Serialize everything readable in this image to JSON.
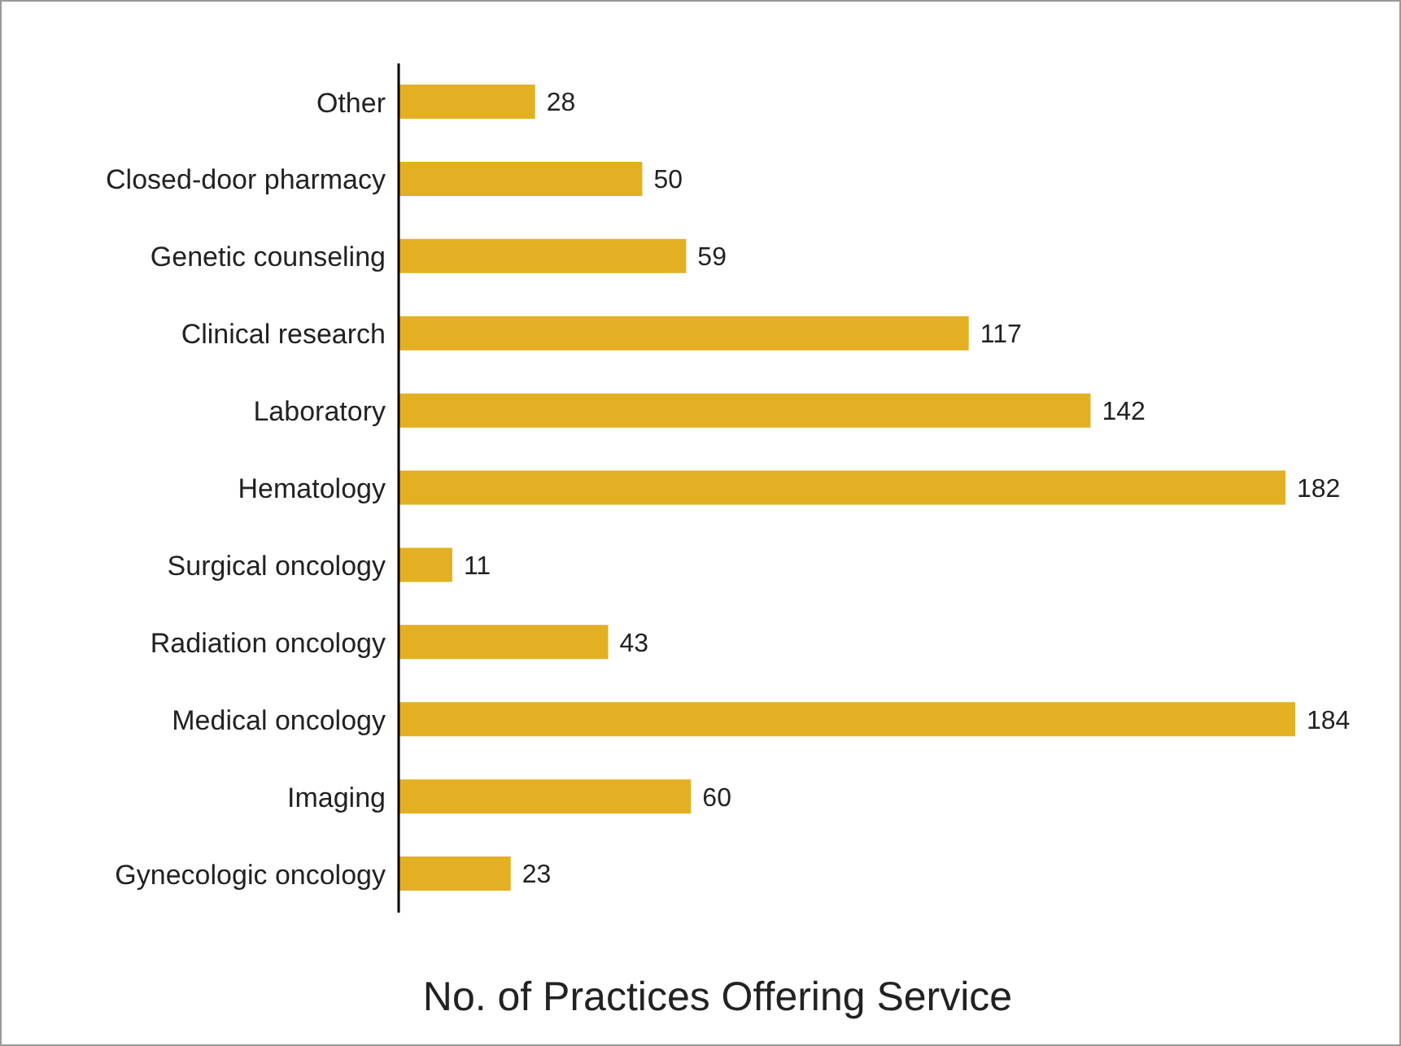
{
  "chart_data": {
    "type": "bar",
    "orientation": "horizontal",
    "xlabel": "No. of Practices Offering Service",
    "categories": [
      "Other",
      "Closed-door pharmacy",
      "Genetic counseling",
      "Clinical research",
      "Laboratory",
      "Hematology",
      "Surgical oncology",
      "Radiation oncology",
      "Medical oncology",
      "Imaging",
      "Gynecologic oncology"
    ],
    "values": [
      28,
      50,
      59,
      117,
      142,
      182,
      11,
      43,
      184,
      60,
      23
    ],
    "color": "#e3b023",
    "data_labels": true
  }
}
